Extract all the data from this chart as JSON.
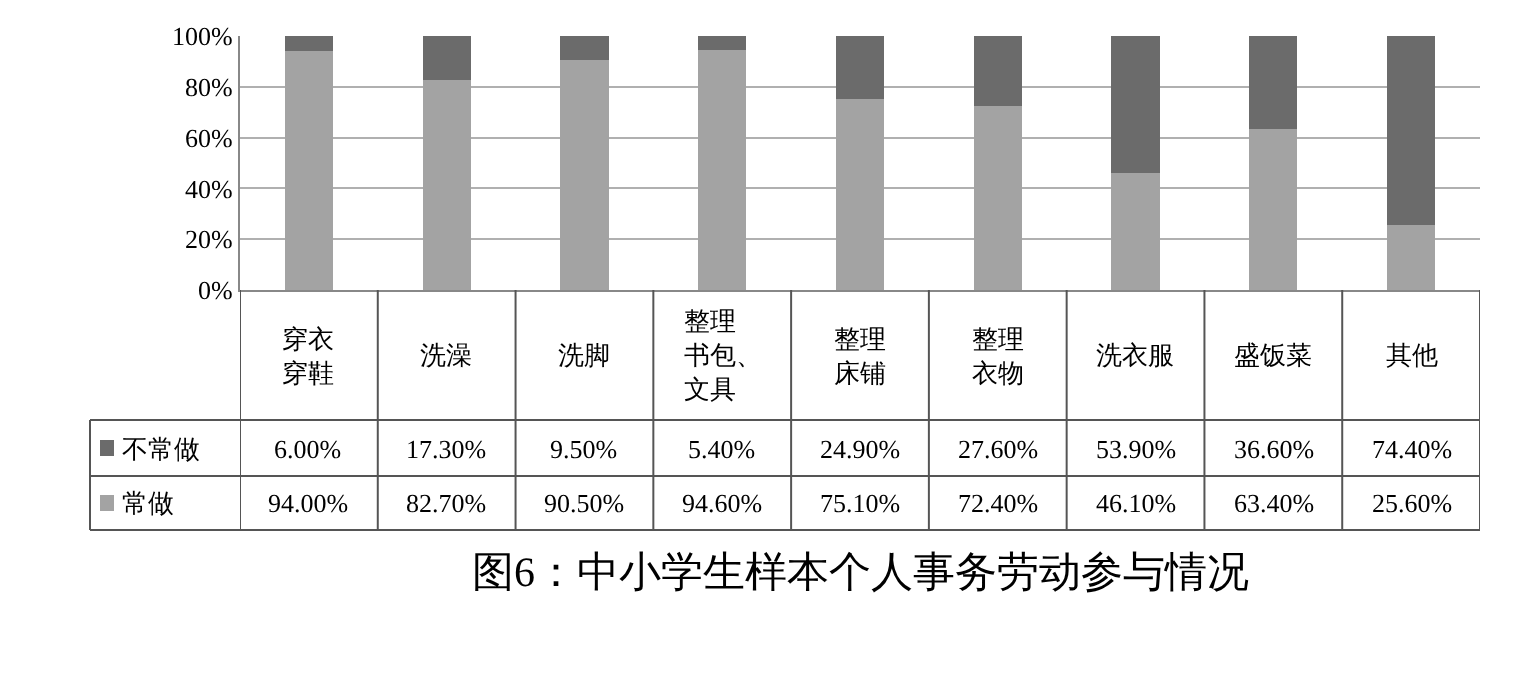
{
  "chart_data": {
    "type": "bar",
    "stacked": true,
    "title": "图6：中小学生样本个人事务劳动参与情况",
    "categories": [
      "穿衣穿鞋",
      "洗澡",
      "洗脚",
      "整理书包、文具",
      "整理床铺",
      "整理衣物",
      "洗衣服",
      "盛饭菜",
      "其他"
    ],
    "series": [
      {
        "name": "常做",
        "color": "#a3a3a3",
        "values": [
          94.0,
          82.7,
          90.5,
          94.6,
          75.1,
          72.4,
          46.1,
          63.4,
          25.6
        ],
        "value_labels": [
          "94.00%",
          "82.70%",
          "90.50%",
          "94.60%",
          "75.10%",
          "72.40%",
          "46.10%",
          "63.40%",
          "25.60%"
        ]
      },
      {
        "name": "不常做",
        "color": "#6b6b6b",
        "values": [
          6.0,
          17.3,
          9.5,
          5.4,
          24.9,
          27.6,
          53.9,
          36.6,
          74.4
        ],
        "value_labels": [
          "6.00%",
          "17.30%",
          "9.50%",
          "5.40%",
          "24.90%",
          "27.60%",
          "53.90%",
          "36.60%",
          "74.40%"
        ]
      }
    ],
    "ylim": [
      0,
      100
    ],
    "yticks": [
      {
        "value": 0,
        "label": "0%"
      },
      {
        "value": 20,
        "label": "20%"
      },
      {
        "value": 40,
        "label": "40%"
      },
      {
        "value": 60,
        "label": "60%"
      },
      {
        "value": 80,
        "label": "80%"
      },
      {
        "value": 100,
        "label": "100%"
      }
    ],
    "grid": "y",
    "legend": "bottom left"
  }
}
